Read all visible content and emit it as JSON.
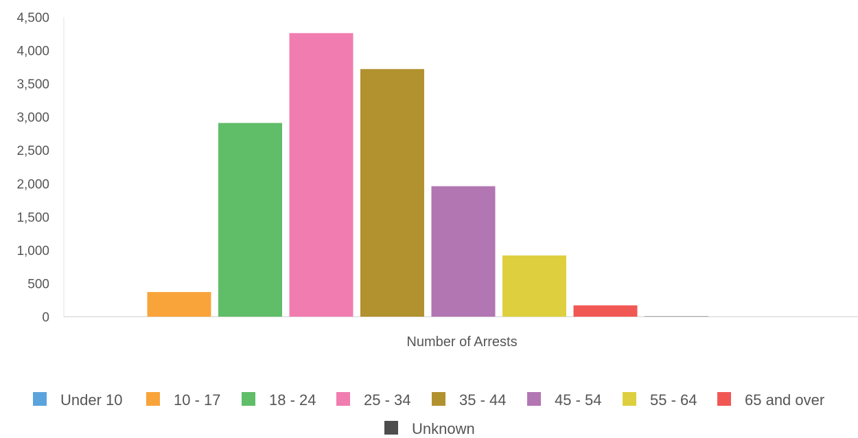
{
  "chart_data": {
    "type": "bar",
    "title": "",
    "xlabel": "Number of Arrests",
    "ylabel": "",
    "ylim": [
      0,
      4500
    ],
    "yticks": [
      0,
      500,
      1000,
      1500,
      2000,
      2500,
      3000,
      3500,
      4000,
      4500
    ],
    "ytick_labels": [
      "0",
      "500",
      "1,000",
      "1,500",
      "2,000",
      "2,500",
      "3,000",
      "3,500",
      "4,000",
      "4,500"
    ],
    "grid": false,
    "legend_position": "bottom",
    "series": [
      {
        "name": "Under 10",
        "value": 0,
        "color": "#5ba3dc"
      },
      {
        "name": "10 - 17",
        "value": 370,
        "color": "#f9a43a"
      },
      {
        "name": "18 - 24",
        "value": 2910,
        "color": "#60bd68"
      },
      {
        "name": "25 - 34",
        "value": 4260,
        "color": "#f17cb0"
      },
      {
        "name": "35 - 44",
        "value": 3720,
        "color": "#b2912f"
      },
      {
        "name": "45 - 54",
        "value": 1960,
        "color": "#b276b2"
      },
      {
        "name": "55 - 64",
        "value": 920,
        "color": "#decf3f"
      },
      {
        "name": "65 and over",
        "value": 170,
        "color": "#f15854"
      },
      {
        "name": "Unknown",
        "value": 5,
        "color": "#4d4d4d"
      }
    ]
  }
}
